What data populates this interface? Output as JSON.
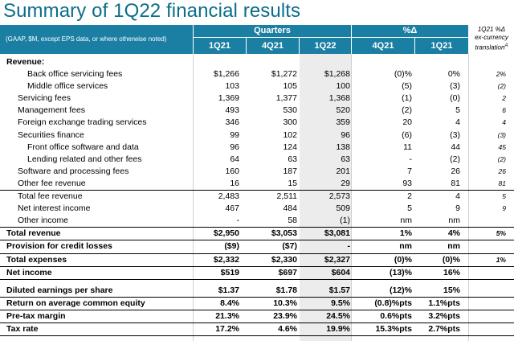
{
  "title": "Summary of 1Q22 financial results",
  "header": {
    "note": "(GAAP, $M, except EPS data, or where otherwise noted)",
    "quarters": "Quarters",
    "pct_change": "%Δ",
    "cols": [
      "1Q21",
      "4Q21",
      "1Q22",
      "4Q21",
      "1Q21"
    ],
    "cc_line1": "1Q21 %Δ",
    "cc_line2": "ex-currency",
    "cc_line3": "translation",
    "cc_sup": "A"
  },
  "rows": [
    {
      "label": "Revenue:",
      "level": 0,
      "bold": true,
      "v": [
        "",
        "",
        "",
        "",
        "",
        ""
      ]
    },
    {
      "label": "Back office servicing fees",
      "level": 2,
      "v": [
        "$1,266",
        "$1,272",
        "$1,268",
        "(0)%",
        "0%",
        "2%"
      ]
    },
    {
      "label": "Middle office services",
      "level": 2,
      "v": [
        "103",
        "105",
        "100",
        "(5)",
        "(3)",
        "(2)"
      ]
    },
    {
      "label": "Servicing fees",
      "level": 1,
      "v": [
        "1,369",
        "1,377",
        "1,368",
        "(1)",
        "(0)",
        "2"
      ]
    },
    {
      "label": "Management fees",
      "level": 1,
      "v": [
        "493",
        "530",
        "520",
        "(2)",
        "5",
        "6"
      ]
    },
    {
      "label": "Foreign exchange trading services",
      "level": 1,
      "v": [
        "346",
        "300",
        "359",
        "20",
        "4",
        "4"
      ]
    },
    {
      "label": "Securities finance",
      "level": 1,
      "v": [
        "99",
        "102",
        "96",
        "(6)",
        "(3)",
        "(3)"
      ]
    },
    {
      "label": "Front office software and data",
      "level": 2,
      "v": [
        "96",
        "124",
        "138",
        "11",
        "44",
        "45"
      ]
    },
    {
      "label": "Lending related and other fees",
      "level": 2,
      "v": [
        "64",
        "63",
        "63",
        "-",
        "(2)",
        "(2)"
      ]
    },
    {
      "label": "Software and processing fees",
      "level": 1,
      "v": [
        "160",
        "187",
        "201",
        "7",
        "26",
        "26"
      ]
    },
    {
      "label": "Other fee revenue",
      "level": 1,
      "v": [
        "16",
        "15",
        "29",
        "93",
        "81",
        "81"
      ],
      "line": true
    },
    {
      "label": "Total fee revenue",
      "level": 1,
      "v": [
        "2,483",
        "2,511",
        "2,573",
        "2",
        "4",
        "5"
      ]
    },
    {
      "label": "Net interest income",
      "level": 1,
      "v": [
        "467",
        "484",
        "509",
        "5",
        "9",
        "9"
      ]
    },
    {
      "label": "Other income",
      "level": 1,
      "v": [
        "-",
        "58",
        "(1)",
        "nm",
        "nm",
        ""
      ],
      "line": true
    },
    {
      "label": "Total revenue",
      "level": 0,
      "bold": true,
      "v": [
        "$2,950",
        "$3,053",
        "$3,081",
        "1%",
        "4%",
        "5%"
      ],
      "line": true
    },
    {
      "label": "Provision for credit losses",
      "level": 0,
      "bold": true,
      "v": [
        "($9)",
        "($7)",
        "-",
        "nm",
        "nm",
        ""
      ],
      "line": true
    },
    {
      "label": "Total expenses",
      "level": 0,
      "bold": true,
      "v": [
        "$2,332",
        "$2,330",
        "$2,327",
        "(0)%",
        "(0)%",
        "1%"
      ],
      "line": true
    },
    {
      "label": "Net income",
      "level": 0,
      "bold": true,
      "v": [
        "$519",
        "$697",
        "$604",
        "(13)%",
        "16%",
        ""
      ],
      "line": true
    },
    {
      "gap": true
    },
    {
      "label": "Diluted earnings per share",
      "level": 0,
      "bold": true,
      "v": [
        "$1.37",
        "$1.78",
        "$1.57",
        "(12)%",
        "15%",
        ""
      ],
      "line": true
    },
    {
      "label": "Return on average common equity",
      "level": 0,
      "bold": true,
      "v": [
        "8.4%",
        "10.3%",
        "9.5%",
        "(0.8)%pts",
        "1.1%pts",
        ""
      ],
      "line": true
    },
    {
      "label": "Pre-tax margin",
      "level": 0,
      "bold": true,
      "v": [
        "21.3%",
        "23.9%",
        "24.5%",
        "0.6%pts",
        "3.2%pts",
        ""
      ],
      "line": true
    },
    {
      "label": "Tax rate",
      "level": 0,
      "bold": true,
      "v": [
        "17.2%",
        "4.6%",
        "19.9%",
        "15.3%pts",
        "2.7%pts",
        ""
      ],
      "line": true
    }
  ]
}
